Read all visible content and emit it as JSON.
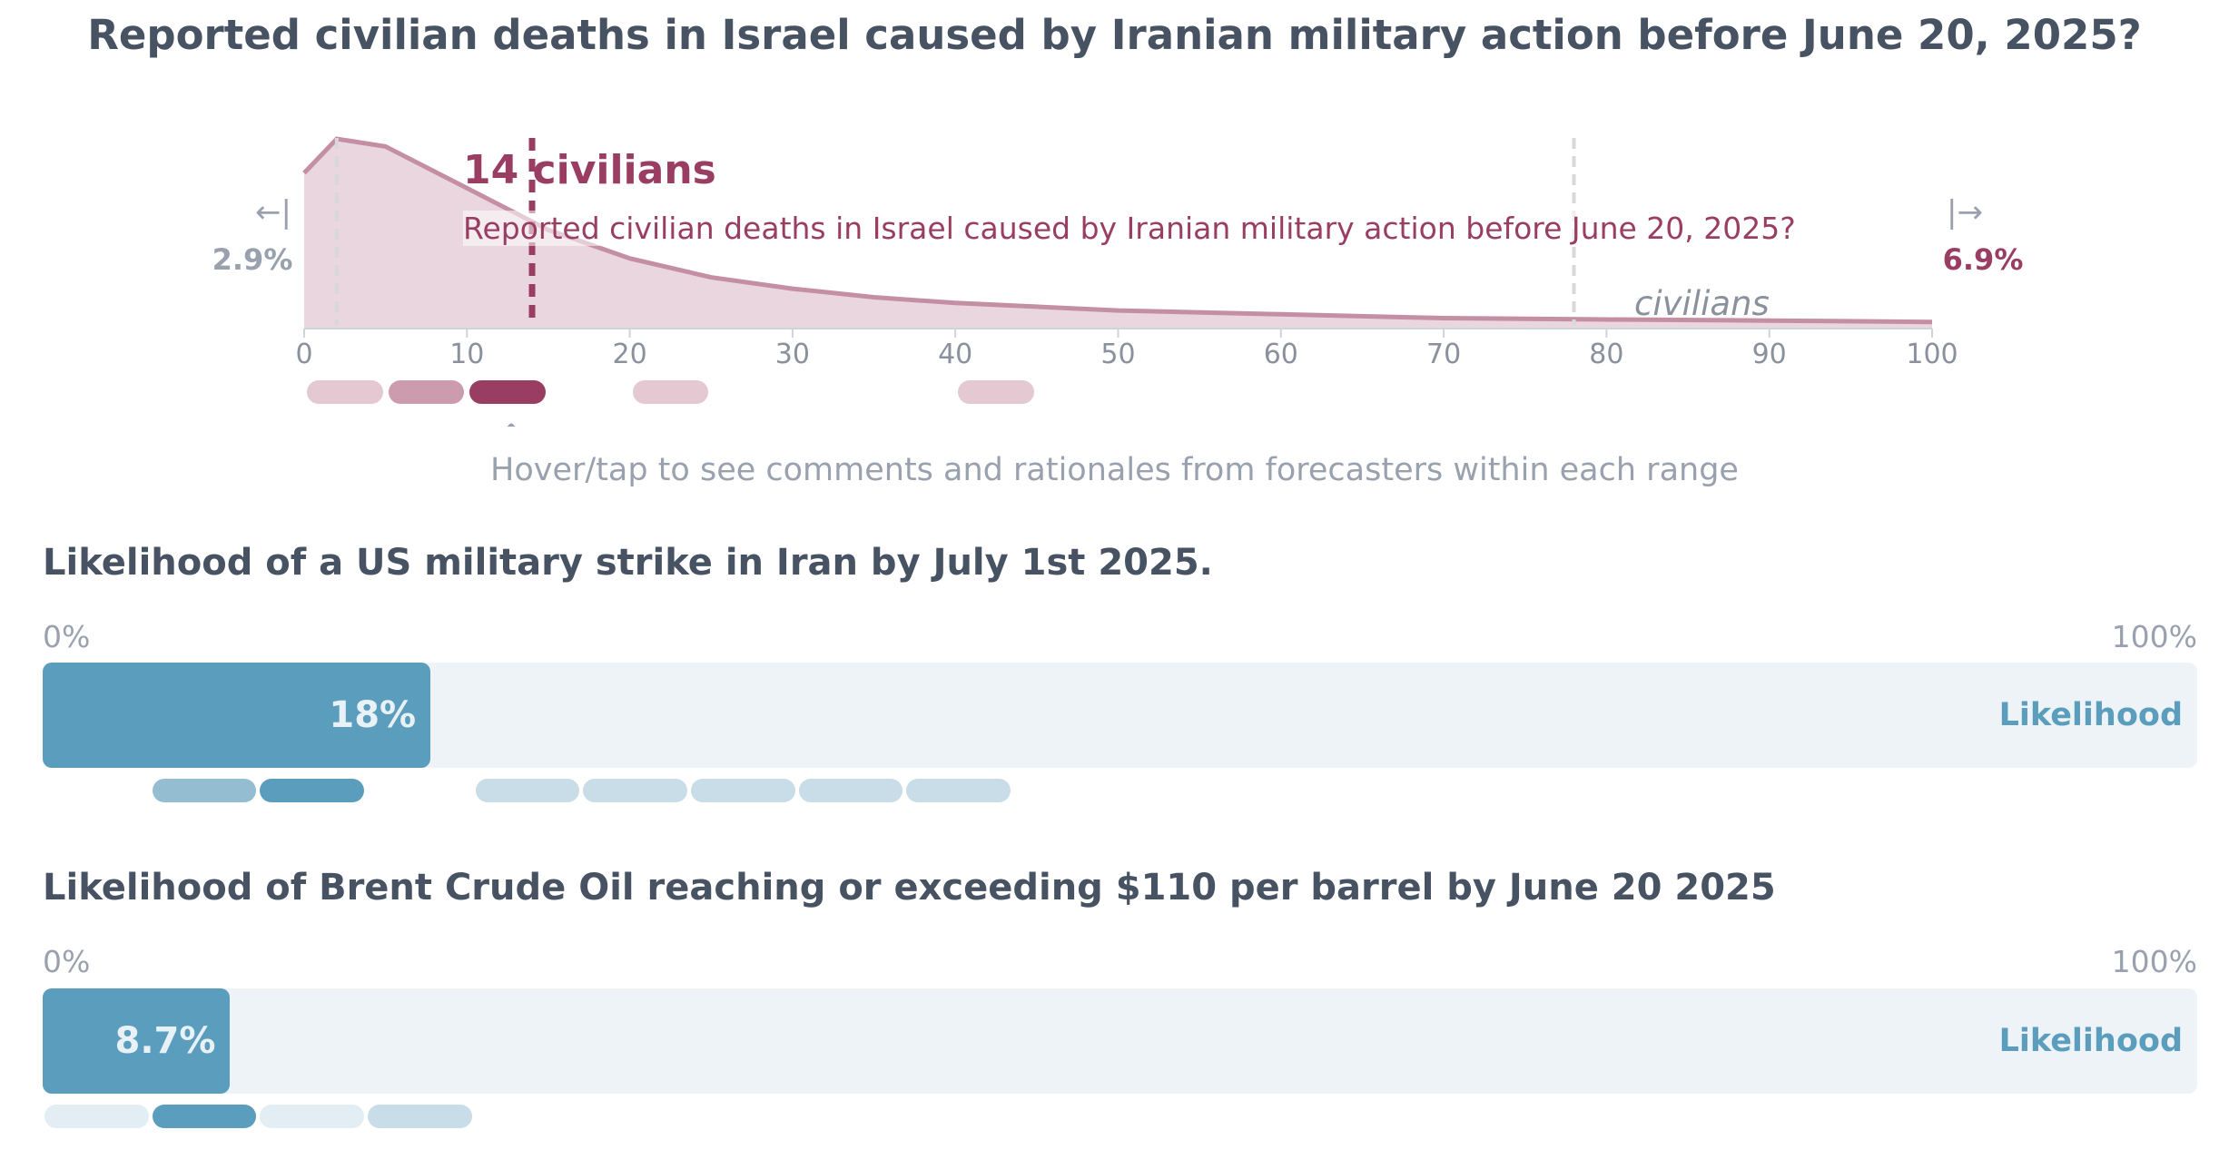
{
  "distribution": {
    "title": "Reported civilian deaths in Israel caused by Iranian military action before June 20, 2025?",
    "median_value": "14 civilians",
    "median_question": "Reported civilian deaths in Israel caused by Iranian military action before June 20, 2025?",
    "lower_arrow": "←|",
    "upper_arrow": "|→",
    "below_lower_bound": "2.9%",
    "above_upper_bound": "6.9%",
    "unit": "civilians",
    "hint": "Hover/tap to see comments and rationales from forecasters within each range",
    "colors": {
      "fill": "#e9d6de",
      "line": "#c58fa3",
      "accent": "#9a3d63",
      "quantile": "#d8d8db"
    }
  },
  "chart_data": [
    {
      "type": "area",
      "title": "Reported civilian deaths in Israel caused by Iranian military action before June 20, 2025?",
      "xlabel": "civilians",
      "xlim": [
        0,
        100
      ],
      "xticks": [
        0,
        10,
        20,
        30,
        40,
        50,
        60,
        70,
        80,
        90,
        100
      ],
      "x": [
        0,
        2,
        5,
        10,
        15,
        20,
        25,
        30,
        35,
        40,
        50,
        60,
        70,
        80,
        90,
        100
      ],
      "y": [
        0.82,
        1.0,
        0.96,
        0.74,
        0.52,
        0.37,
        0.27,
        0.21,
        0.165,
        0.135,
        0.095,
        0.075,
        0.055,
        0.048,
        0.042,
        0.035
      ],
      "median": 14,
      "quantile_markers": [
        2,
        78
      ],
      "below_lower_bound": "2.9%",
      "above_upper_bound": "6.9%",
      "comment_ranges": [
        {
          "from": 0,
          "to": 5,
          "shade": "#e4c9d3"
        },
        {
          "from": 5,
          "to": 10,
          "shade": "#cc9cae"
        },
        {
          "from": 10,
          "to": 15,
          "shade": "#9a3d63"
        },
        {
          "from": 20,
          "to": 25,
          "shade": "#e4c9d3"
        },
        {
          "from": 40,
          "to": 45,
          "shade": "#e4c9d3"
        }
      ]
    },
    {
      "type": "bar",
      "title": "Likelihood of a US military strike in Iran by July 1st 2025.",
      "value": 18,
      "value_label": "18%",
      "range": [
        0,
        100
      ],
      "label": "Likelihood",
      "comment_ranges": [
        {
          "from": 5,
          "to": 10,
          "shade": "#94bdd2"
        },
        {
          "from": 10,
          "to": 15,
          "shade": "#5b9dbd"
        },
        {
          "from": 20,
          "to": 25,
          "shade": "#c9dde8"
        },
        {
          "from": 25,
          "to": 30,
          "shade": "#c9dde8"
        },
        {
          "from": 30,
          "to": 35,
          "shade": "#c9dde8"
        },
        {
          "from": 35,
          "to": 40,
          "shade": "#c9dde8"
        },
        {
          "from": 40,
          "to": 45,
          "shade": "#c9dde8"
        }
      ]
    },
    {
      "type": "bar",
      "title": "Likelihood of Brent Crude Oil reaching or exceeding $110 per barrel by June 20 2025",
      "value": 8.7,
      "value_label": "8.7%",
      "range": [
        0,
        100
      ],
      "label": "Likelihood",
      "comment_ranges": [
        {
          "from": 0,
          "to": 5,
          "shade": "#e2eef3"
        },
        {
          "from": 5,
          "to": 10,
          "shade": "#5b9dbd"
        },
        {
          "from": 10,
          "to": 15,
          "shade": "#e2eef3"
        },
        {
          "from": 15,
          "to": 20,
          "shade": "#c9dde8"
        }
      ]
    }
  ],
  "questions": [
    {
      "title": "Likelihood of a US military strike in Iran by July 1st 2025.",
      "min_label": "0%",
      "max_label": "100%",
      "value_label": "18%",
      "track_label": "Likelihood"
    },
    {
      "title": "Likelihood of Brent Crude Oil reaching or exceeding $110 per barrel by June 20 2025",
      "min_label": "0%",
      "max_label": "100%",
      "value_label": "8.7%",
      "track_label": "Likelihood"
    }
  ]
}
